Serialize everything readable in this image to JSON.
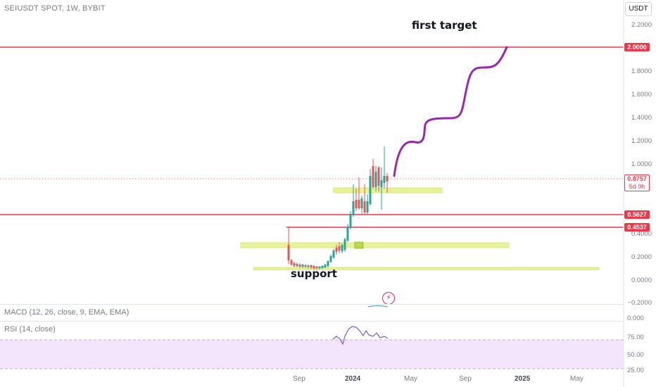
{
  "header": {
    "symbol_title": "SEIUSDT SPOT, 1W, BYBIT",
    "currency_button": "USDT"
  },
  "price_axis": {
    "ticks": [
      "2.2000",
      "1.8000",
      "1.6000",
      "1.4000",
      "1.2000",
      "1.0000",
      "0.4000",
      "0.2000",
      "0.0000",
      "−0.2000"
    ]
  },
  "price_tags": {
    "target": {
      "text": "2.0000",
      "color": "#f23645"
    },
    "current": {
      "text": "0.8757",
      "sub": "5d 9h",
      "color": "#f23645"
    },
    "level_1": {
      "text": "0.5627",
      "color": "#f23645"
    },
    "level_2": {
      "text": "0.4537",
      "color": "#f23645"
    }
  },
  "annotations": {
    "first_target": "first target",
    "support": "support"
  },
  "macd": {
    "title": "MACD (12, 26, close, 9, EMA, EMA)",
    "axis_value": "0.000"
  },
  "rsi": {
    "title": "RSI (14, close)",
    "axis_ticks": [
      "75.00",
      "50.00",
      "25.00"
    ]
  },
  "time_axis": {
    "labels": [
      "Sep",
      "2024",
      "May",
      "Sep",
      "2025",
      "May"
    ]
  },
  "colors": {
    "up": "#26a69a",
    "down": "#ef5350",
    "projection": "#9c27b0",
    "zone": "#e6f28a",
    "level_line": "#f23645",
    "rsi_band": "#f3e5fc"
  },
  "icons": {
    "alert_bolt": "lightning-icon"
  }
}
